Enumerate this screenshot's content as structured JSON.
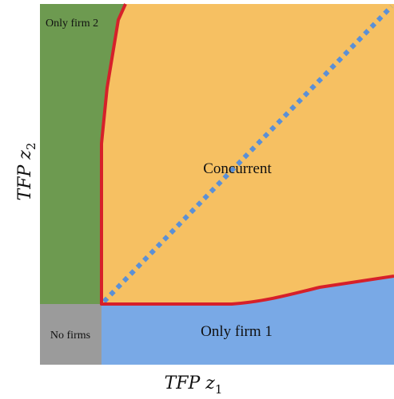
{
  "regions": {
    "no_firms": {
      "label": "No firms",
      "color": "#9b9b9b"
    },
    "only_firm_1": {
      "label": "Only firm 1",
      "color": "#79a9e6"
    },
    "only_firm_2": {
      "label": "Only firm 2",
      "color": "#6d9a50"
    },
    "concurrent": {
      "label": "Concurrent",
      "color": "#f6c062"
    }
  },
  "boundary_color": "#d6202a",
  "diagonal_color": "#5b90d6",
  "axes": {
    "x": {
      "label": "TFP z",
      "subscript": "1"
    },
    "y": {
      "label": "TFP z",
      "subscript": "2"
    }
  }
}
